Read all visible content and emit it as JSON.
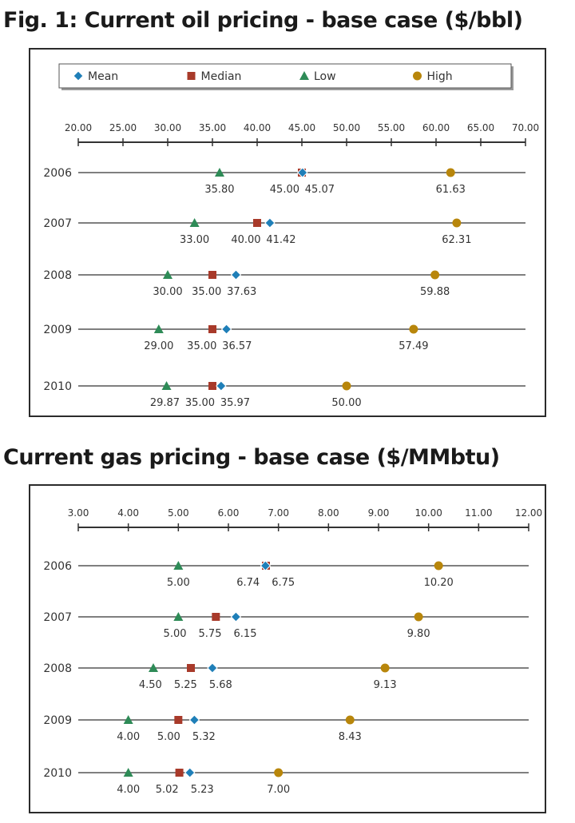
{
  "chart_data": [
    {
      "type": "scatter",
      "title": "Fig. 1: Current oil pricing - base case ($/bbl)",
      "legend": [
        "Mean",
        "Median",
        "Low",
        "High"
      ],
      "legend_position": "top",
      "xlim": [
        20,
        70
      ],
      "x_ticks": [
        "20.00",
        "25.00",
        "30.00",
        "35.00",
        "40.00",
        "45.00",
        "50.00",
        "55.00",
        "60.00",
        "65.00",
        "70.00"
      ],
      "categories": [
        "2006",
        "2007",
        "2008",
        "2009",
        "2010"
      ],
      "series": [
        {
          "name": "Mean",
          "values": [
            45.07,
            41.42,
            37.63,
            36.57,
            35.97
          ]
        },
        {
          "name": "Median",
          "values": [
            45.0,
            40.0,
            35.0,
            35.0,
            35.0
          ]
        },
        {
          "name": "Low",
          "values": [
            35.8,
            33.0,
            30.0,
            29.0,
            29.87
          ]
        },
        {
          "name": "High",
          "values": [
            61.63,
            62.31,
            59.88,
            57.49,
            50.0
          ]
        }
      ]
    },
    {
      "type": "scatter",
      "title": "Current gas pricing - base case ($/MMbtu)",
      "xlim": [
        3,
        12
      ],
      "x_ticks": [
        "3.00",
        "4.00",
        "5.00",
        "6.00",
        "7.00",
        "8.00",
        "9.00",
        "10.00",
        "11.00",
        "12.00"
      ],
      "categories": [
        "2006",
        "2007",
        "2008",
        "2009",
        "2010"
      ],
      "series": [
        {
          "name": "Mean",
          "values": [
            6.74,
            6.15,
            5.68,
            5.32,
            5.23
          ]
        },
        {
          "name": "Median",
          "values": [
            6.75,
            5.75,
            5.25,
            5.0,
            5.02
          ]
        },
        {
          "name": "Low",
          "values": [
            5.0,
            5.0,
            4.5,
            4.0,
            4.0
          ]
        },
        {
          "name": "High",
          "values": [
            10.2,
            9.8,
            9.13,
            8.43,
            7.0
          ]
        }
      ]
    }
  ],
  "colors": {
    "Mean": "#1f7fb8",
    "Median": "#a83a2a",
    "Low": "#2e8b57",
    "High": "#b8860b",
    "axis": "#333333"
  },
  "marker_icons": {
    "Mean": "diamond-icon",
    "Median": "square-icon",
    "Low": "triangle-icon",
    "High": "circle-icon"
  }
}
